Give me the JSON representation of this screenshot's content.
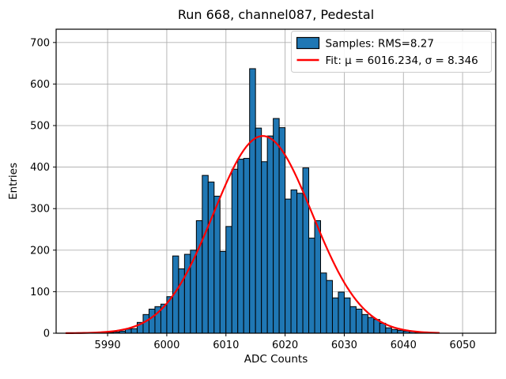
{
  "figure": {
    "background": "#ffffff"
  },
  "chart_data": {
    "type": "bar",
    "subtype": "histogram",
    "title": "Run 668, channel087, Pedestal",
    "xlabel": "ADC Counts",
    "ylabel": "Entries",
    "xlim": [
      5981.3,
      6055.6
    ],
    "ylim": [
      0,
      732
    ],
    "x_ticks": [
      5990,
      6000,
      6010,
      6020,
      6030,
      6040,
      6050
    ],
    "y_ticks": [
      0,
      100,
      200,
      300,
      400,
      500,
      600,
      700
    ],
    "grid": true,
    "grid_color": "#b0b0b0",
    "bar_color": "#1f77b4",
    "bar_edge_color": "#000000",
    "fit_color": "#ff0000",
    "histogram": {
      "bin_width": 1,
      "bin_start": 5989,
      "counts": [
        1,
        2,
        3,
        5,
        10,
        11,
        26,
        45,
        58,
        64,
        70,
        88,
        186,
        155,
        190,
        200,
        271,
        380,
        364,
        330,
        197,
        257,
        395,
        419,
        421,
        637,
        494,
        413,
        475,
        517,
        495,
        323,
        345,
        337,
        398,
        229,
        271,
        145,
        127,
        85,
        99,
        85,
        64,
        58,
        45,
        38,
        33,
        24,
        13,
        9,
        7,
        5,
        4,
        2
      ]
    },
    "fit": {
      "mu": 6016.234,
      "sigma": 8.346,
      "amplitude": 475,
      "range": [
        5983,
        6046
      ]
    },
    "legend": {
      "position": "upper right",
      "entries": [
        {
          "type": "patch",
          "label": "Samples: RMS=8.27"
        },
        {
          "type": "line",
          "label": "Fit: μ = 6016.234, σ = 8.346"
        }
      ]
    }
  }
}
